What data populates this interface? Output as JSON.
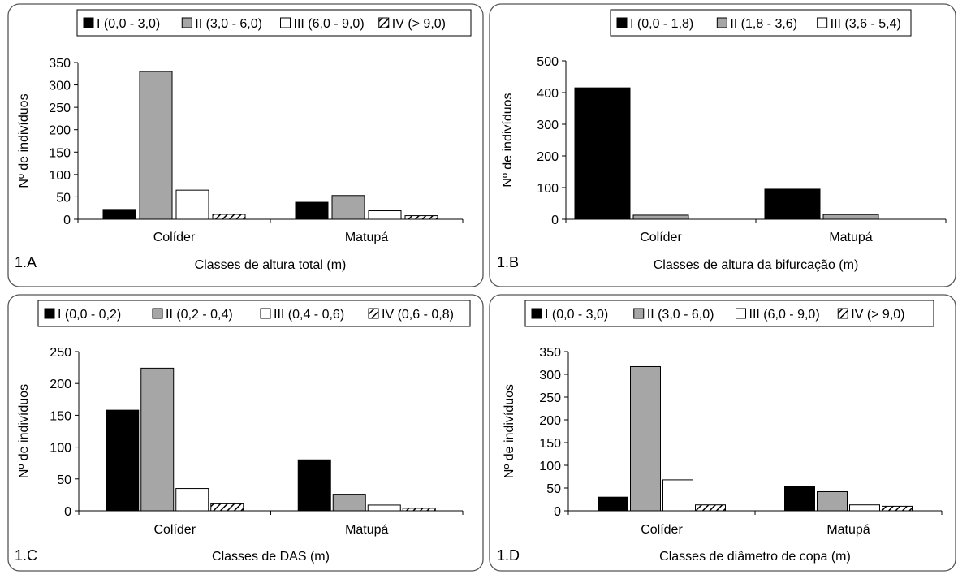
{
  "chart_data": [
    {
      "type": "bar",
      "panel_label": "1.A",
      "xlabel": "Classes de altura total (m)",
      "ylabel": "Nº de indivíduos",
      "ylim": [
        0,
        350
      ],
      "yticks": [
        0,
        50,
        100,
        150,
        200,
        250,
        300,
        350
      ],
      "grid": false,
      "legend_position": "top",
      "categories": [
        "Colíder",
        "Matupá"
      ],
      "series": [
        {
          "name": "I (0,0 - 3,0)",
          "fill": "solid-black",
          "values": [
            22,
            38
          ]
        },
        {
          "name": "II (3,0 - 6,0)",
          "fill": "solid-gray",
          "values": [
            330,
            53
          ]
        },
        {
          "name": "III (6,0 - 9,0)",
          "fill": "white",
          "values": [
            65,
            19
          ]
        },
        {
          "name": "IV (> 9,0)",
          "fill": "hatched",
          "values": [
            11,
            8
          ]
        }
      ]
    },
    {
      "type": "bar",
      "panel_label": "1.B",
      "xlabel": "Classes de altura da bifurcação (m)",
      "ylabel": "Nº de indivíduos",
      "ylim": [
        0,
        500
      ],
      "yticks": [
        0,
        100,
        200,
        300,
        400,
        500
      ],
      "grid": false,
      "legend_position": "top",
      "categories": [
        "Colíder",
        "Matupá"
      ],
      "series": [
        {
          "name": "I (0,0 - 1,8)",
          "fill": "solid-black",
          "values": [
            415,
            95
          ]
        },
        {
          "name": "II (1,8 - 3,6)",
          "fill": "solid-gray",
          "values": [
            13,
            15
          ]
        },
        {
          "name": "III (3,6 - 5,4)",
          "fill": "white",
          "values": [
            0,
            0
          ]
        }
      ]
    },
    {
      "type": "bar",
      "panel_label": "1.C",
      "xlabel": "Classes de DAS (m)",
      "ylabel": "Nº de indivíduos",
      "ylim": [
        0,
        250
      ],
      "yticks": [
        0,
        50,
        100,
        150,
        200,
        250
      ],
      "grid": false,
      "legend_position": "top",
      "categories": [
        "Colíder",
        "Matupá"
      ],
      "series": [
        {
          "name": "I (0,0 - 0,2)",
          "fill": "solid-black",
          "values": [
            158,
            80
          ]
        },
        {
          "name": "II (0,2 - 0,4)",
          "fill": "solid-gray",
          "values": [
            224,
            26
          ]
        },
        {
          "name": "III (0,4 - 0,6)",
          "fill": "white",
          "values": [
            35,
            9
          ]
        },
        {
          "name": "IV (0,6 - 0,8)",
          "fill": "hatched",
          "values": [
            11,
            4
          ]
        }
      ]
    },
    {
      "type": "bar",
      "panel_label": "1.D",
      "xlabel": "Classes de diâmetro de copa (m)",
      "ylabel": "Nº de indivíduos",
      "ylim": [
        0,
        350
      ],
      "yticks": [
        0,
        50,
        100,
        150,
        200,
        250,
        300,
        350
      ],
      "grid": false,
      "legend_position": "top",
      "categories": [
        "Colíder",
        "Matupá"
      ],
      "series": [
        {
          "name": "I (0,0 - 3,0)",
          "fill": "solid-black",
          "values": [
            30,
            53
          ]
        },
        {
          "name": "II (3,0 - 6,0)",
          "fill": "solid-gray",
          "values": [
            317,
            42
          ]
        },
        {
          "name": "III (6,0 - 9,0)",
          "fill": "white",
          "values": [
            68,
            13
          ]
        },
        {
          "name": "IV (> 9,0)",
          "fill": "hatched",
          "values": [
            13,
            10
          ]
        }
      ]
    }
  ],
  "colors": {
    "solid-black": "#000000",
    "solid-gray": "#a6a6a6",
    "white": "#ffffff",
    "hatched": "#000000",
    "frame": "#555555"
  }
}
